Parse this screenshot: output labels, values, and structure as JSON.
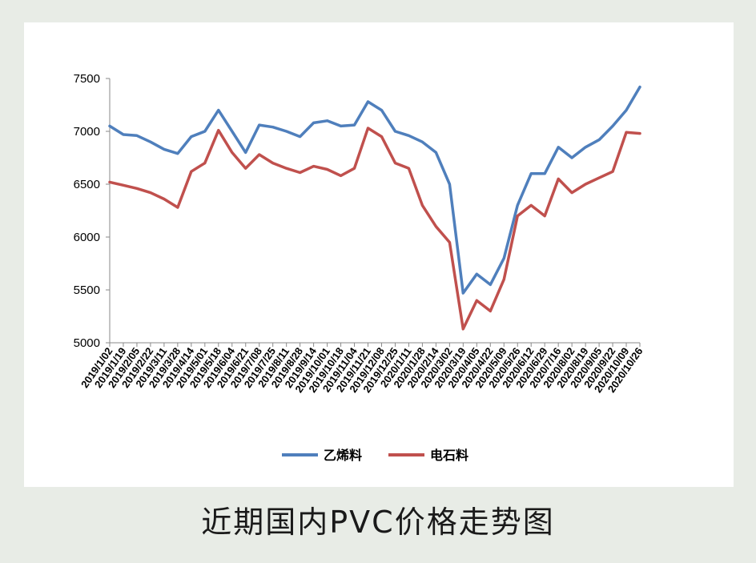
{
  "caption": "近期国内PVC价格走势图",
  "chart_data": {
    "type": "line",
    "title": "",
    "xlabel": "",
    "ylabel": "",
    "ylim": [
      5000,
      7500
    ],
    "yticks": [
      5000,
      5500,
      6000,
      6500,
      7000,
      7500
    ],
    "grid": false,
    "legend_position": "bottom",
    "x_tick_labels": [
      "2019/1/02",
      "2019/1/19",
      "2019/2/05",
      "2019/2/22",
      "2019/3/11",
      "2019/3/28",
      "2019/4/14",
      "2019/5/01",
      "2019/5/18",
      "2019/6/04",
      "2019/6/21",
      "2019/7/08",
      "2019/7/25",
      "2019/8/11",
      "2019/8/28",
      "2019/9/14",
      "2019/10/01",
      "2019/10/18",
      "2019/11/04",
      "2019/11/21",
      "2019/12/08",
      "2019/12/25",
      "2020/1/11",
      "2020/1/28",
      "2020/2/14",
      "2020/3/02",
      "2020/3/19",
      "2020/4/05",
      "2020/4/22",
      "2020/5/09",
      "2020/5/26",
      "2020/6/12",
      "2020/6/29",
      "2020/7/16",
      "2020/8/02",
      "2020/8/19",
      "2020/9/05",
      "2020/9/22",
      "2020/10/09",
      "2020/10/26"
    ],
    "x": [
      "2019/1/02",
      "2019/1/19",
      "2019/2/05",
      "2019/2/22",
      "2019/3/11",
      "2019/3/28",
      "2019/4/14",
      "2019/5/01",
      "2019/5/18",
      "2019/6/04",
      "2019/6/21",
      "2019/7/08",
      "2019/7/25",
      "2019/8/11",
      "2019/8/28",
      "2019/9/14",
      "2019/10/01",
      "2019/10/18",
      "2019/11/04",
      "2019/11/21",
      "2019/12/08",
      "2019/12/25",
      "2020/1/11",
      "2020/1/28",
      "2020/2/14",
      "2020/3/02",
      "2020/3/19",
      "2020/4/05",
      "2020/4/22",
      "2020/5/09",
      "2020/5/26",
      "2020/6/12",
      "2020/6/29",
      "2020/7/16",
      "2020/8/02",
      "2020/8/19",
      "2020/9/05",
      "2020/9/22",
      "2020/10/09",
      "2020/10/26"
    ],
    "series": [
      {
        "name": "乙烯料",
        "color": "#4f7fbc",
        "values": [
          7050,
          6970,
          6960,
          6900,
          6830,
          6790,
          6950,
          7000,
          7200,
          7000,
          6800,
          7060,
          7040,
          7000,
          6950,
          7080,
          7100,
          7050,
          7060,
          7280,
          7200,
          7000,
          6960,
          6900,
          6800,
          6500,
          5470,
          5650,
          5550,
          5800,
          6300,
          6600,
          6600,
          6850,
          6750,
          6850,
          6920,
          7050,
          7200,
          7420
        ]
      },
      {
        "name": "电石料",
        "color": "#c0504d",
        "values": [
          6520,
          6490,
          6460,
          6420,
          6360,
          6280,
          6620,
          6700,
          7010,
          6800,
          6650,
          6780,
          6700,
          6650,
          6610,
          6670,
          6640,
          6580,
          6650,
          7030,
          6950,
          6700,
          6650,
          6300,
          6100,
          5950,
          5130,
          5400,
          5300,
          5600,
          6200,
          6300,
          6200,
          6550,
          6420,
          6500,
          6560,
          6620,
          6990,
          6980
        ]
      }
    ]
  }
}
